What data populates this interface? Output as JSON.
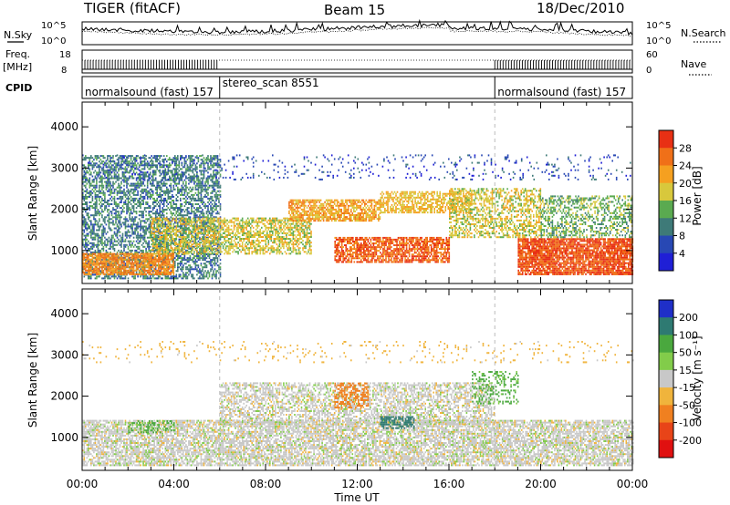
{
  "header": {
    "radar": "TIGER (fitACF)",
    "beam": "Beam 15",
    "date": "18/Dec/2010"
  },
  "noise_panel": {
    "left_label": "N.Sky",
    "right_label": "N.Search",
    "left_ticks": [
      "10^5",
      "10^0"
    ],
    "right_ticks": [
      "10^5",
      "10^0"
    ]
  },
  "freq_panel": {
    "left_label_1": "Freq.",
    "left_label_2": "[MHz]",
    "right_label": "Nave",
    "left_ticks": [
      "18",
      "8"
    ],
    "right_ticks": [
      "60",
      "0"
    ]
  },
  "cpid_panel": {
    "label": "CPID",
    "segments": [
      {
        "start_hour": 0,
        "end_hour": 6,
        "text": "normalsound (fast) 157"
      },
      {
        "start_hour": 6,
        "end_hour": 18,
        "text": "stereo_scan 8551"
      },
      {
        "start_hour": 18,
        "end_hour": 24,
        "text": "normalsound (fast) 157"
      }
    ]
  },
  "chart_data": [
    {
      "type": "heatmap",
      "name": "power",
      "ylabel": "Slant Range [km]",
      "ylim": [
        200,
        4600
      ],
      "yticks": [
        "1000",
        "2000",
        "3000",
        "4000"
      ],
      "xlim_hours": [
        0,
        24
      ],
      "colorbar_label": "Power [dB]",
      "colorbar_ticks": [
        "4",
        "8",
        "12",
        "16",
        "20",
        "24",
        "28"
      ],
      "colorbar_colors": [
        "#1f1fd6",
        "#2848b4",
        "#3e7a78",
        "#5aaa50",
        "#d8c83c",
        "#f5a020",
        "#f07018",
        "#e83014"
      ],
      "colorbar_range": [
        0,
        32
      ],
      "scatter_bands": [
        {
          "start": 0,
          "end": 6,
          "low": 300,
          "high": 3300,
          "level": 10,
          "density": 0.55
        },
        {
          "start": 0,
          "end": 4,
          "low": 400,
          "high": 900,
          "level": 24,
          "density": 0.8
        },
        {
          "start": 3,
          "end": 10,
          "low": 900,
          "high": 1800,
          "level": 18,
          "density": 0.6
        },
        {
          "start": 9,
          "end": 13,
          "low": 1700,
          "high": 2200,
          "level": 22,
          "density": 0.7
        },
        {
          "start": 11,
          "end": 16,
          "low": 700,
          "high": 1300,
          "level": 27,
          "density": 0.75
        },
        {
          "start": 13,
          "end": 17,
          "low": 1900,
          "high": 2400,
          "level": 20,
          "density": 0.6
        },
        {
          "start": 16,
          "end": 20,
          "low": 1300,
          "high": 2500,
          "level": 18,
          "density": 0.5
        },
        {
          "start": 19,
          "end": 24,
          "low": 400,
          "high": 1300,
          "level": 28,
          "density": 0.85
        },
        {
          "start": 20,
          "end": 24,
          "low": 1300,
          "high": 2300,
          "level": 14,
          "density": 0.45
        },
        {
          "start": 0,
          "end": 24,
          "low": 2700,
          "high": 3300,
          "level": 6,
          "density": 0.08
        }
      ]
    },
    {
      "type": "heatmap",
      "name": "velocity",
      "ylabel": "Slant Range [km]",
      "ylim": [
        200,
        4600
      ],
      "yticks": [
        "1000",
        "2000",
        "3000",
        "4000"
      ],
      "xlim_hours": [
        0,
        24
      ],
      "xticks": [
        "00:00",
        "04:00",
        "08:00",
        "12:00",
        "16:00",
        "20:00",
        "00:00"
      ],
      "xlabel": "Time UT",
      "colorbar_label": "Velocity [m s⁻¹]",
      "colorbar_ticks": [
        "200",
        "100",
        "50",
        "15",
        "-15",
        "-50",
        "-100",
        "-200"
      ],
      "colorbar_colors": [
        "#1f2fc8",
        "#2e7a72",
        "#4aa83e",
        "#82cc4a",
        "#c8c8c8",
        "#f0b43c",
        "#f08020",
        "#e84418",
        "#e01010"
      ],
      "scatter_bands": [
        {
          "start": 0,
          "end": 24,
          "low": 300,
          "high": 1400,
          "value": 0,
          "density": 0.7
        },
        {
          "start": 6,
          "end": 18,
          "low": 1300,
          "high": 2300,
          "value": 0,
          "density": 0.55
        },
        {
          "start": 11,
          "end": 12.5,
          "low": 1700,
          "high": 2300,
          "value": -80,
          "density": 0.5
        },
        {
          "start": 13,
          "end": 14.5,
          "low": 1200,
          "high": 1500,
          "value": 150,
          "density": 0.6
        },
        {
          "start": 2,
          "end": 4,
          "low": 1100,
          "high": 1400,
          "value": 60,
          "density": 0.35
        },
        {
          "start": 17,
          "end": 19,
          "low": 1800,
          "high": 2600,
          "value": 60,
          "density": 0.3
        },
        {
          "start": 0,
          "end": 24,
          "low": 2800,
          "high": 3300,
          "value": -30,
          "density": 0.06
        }
      ]
    }
  ]
}
